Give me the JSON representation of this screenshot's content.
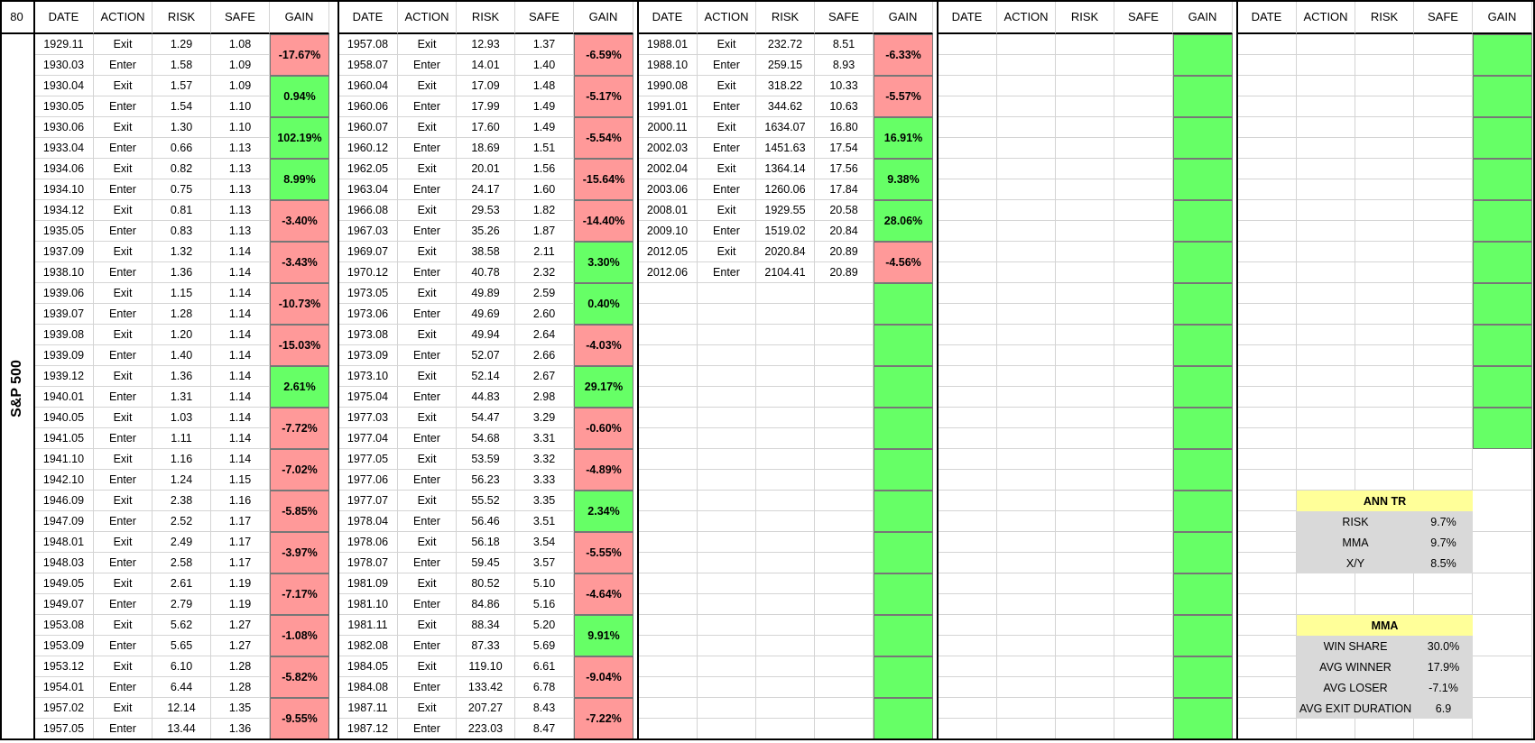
{
  "corner": "80",
  "side_label": "S&P 500",
  "headers": [
    "DATE",
    "ACTION",
    "RISK",
    "SAFE",
    "GAIN"
  ],
  "blocks": [
    {
      "pairs": [
        {
          "rows": [
            [
              "1929.11",
              "Exit",
              "1.29",
              "1.08"
            ],
            [
              "1930.03",
              "Enter",
              "1.58",
              "1.09"
            ]
          ],
          "gain": "-17.67%"
        },
        {
          "rows": [
            [
              "1930.04",
              "Exit",
              "1.57",
              "1.09"
            ],
            [
              "1930.05",
              "Enter",
              "1.54",
              "1.10"
            ]
          ],
          "gain": "0.94%"
        },
        {
          "rows": [
            [
              "1930.06",
              "Exit",
              "1.30",
              "1.10"
            ],
            [
              "1933.04",
              "Enter",
              "0.66",
              "1.13"
            ]
          ],
          "gain": "102.19%"
        },
        {
          "rows": [
            [
              "1934.06",
              "Exit",
              "0.82",
              "1.13"
            ],
            [
              "1934.10",
              "Enter",
              "0.75",
              "1.13"
            ]
          ],
          "gain": "8.99%"
        },
        {
          "rows": [
            [
              "1934.12",
              "Exit",
              "0.81",
              "1.13"
            ],
            [
              "1935.05",
              "Enter",
              "0.83",
              "1.13"
            ]
          ],
          "gain": "-3.40%"
        },
        {
          "rows": [
            [
              "1937.09",
              "Exit",
              "1.32",
              "1.14"
            ],
            [
              "1938.10",
              "Enter",
              "1.36",
              "1.14"
            ]
          ],
          "gain": "-3.43%"
        },
        {
          "rows": [
            [
              "1939.06",
              "Exit",
              "1.15",
              "1.14"
            ],
            [
              "1939.07",
              "Enter",
              "1.28",
              "1.14"
            ]
          ],
          "gain": "-10.73%"
        },
        {
          "rows": [
            [
              "1939.08",
              "Exit",
              "1.20",
              "1.14"
            ],
            [
              "1939.09",
              "Enter",
              "1.40",
              "1.14"
            ]
          ],
          "gain": "-15.03%"
        },
        {
          "rows": [
            [
              "1939.12",
              "Exit",
              "1.36",
              "1.14"
            ],
            [
              "1940.01",
              "Enter",
              "1.31",
              "1.14"
            ]
          ],
          "gain": "2.61%"
        },
        {
          "rows": [
            [
              "1940.05",
              "Exit",
              "1.03",
              "1.14"
            ],
            [
              "1941.05",
              "Enter",
              "1.11",
              "1.14"
            ]
          ],
          "gain": "-7.72%"
        },
        {
          "rows": [
            [
              "1941.10",
              "Exit",
              "1.16",
              "1.14"
            ],
            [
              "1942.10",
              "Enter",
              "1.24",
              "1.15"
            ]
          ],
          "gain": "-7.02%"
        },
        {
          "rows": [
            [
              "1946.09",
              "Exit",
              "2.38",
              "1.16"
            ],
            [
              "1947.09",
              "Enter",
              "2.52",
              "1.17"
            ]
          ],
          "gain": "-5.85%"
        },
        {
          "rows": [
            [
              "1948.01",
              "Exit",
              "2.49",
              "1.17"
            ],
            [
              "1948.03",
              "Enter",
              "2.58",
              "1.17"
            ]
          ],
          "gain": "-3.97%"
        },
        {
          "rows": [
            [
              "1949.05",
              "Exit",
              "2.61",
              "1.19"
            ],
            [
              "1949.07",
              "Enter",
              "2.79",
              "1.19"
            ]
          ],
          "gain": "-7.17%"
        },
        {
          "rows": [
            [
              "1953.08",
              "Exit",
              "5.62",
              "1.27"
            ],
            [
              "1953.09",
              "Enter",
              "5.65",
              "1.27"
            ]
          ],
          "gain": "-1.08%"
        },
        {
          "rows": [
            [
              "1953.12",
              "Exit",
              "6.10",
              "1.28"
            ],
            [
              "1954.01",
              "Enter",
              "6.44",
              "1.28"
            ]
          ],
          "gain": "-5.82%"
        },
        {
          "rows": [
            [
              "1957.02",
              "Exit",
              "12.14",
              "1.35"
            ],
            [
              "1957.05",
              "Enter",
              "13.44",
              "1.36"
            ]
          ],
          "gain": "-9.55%"
        }
      ]
    },
    {
      "pairs": [
        {
          "rows": [
            [
              "1957.08",
              "Exit",
              "12.93",
              "1.37"
            ],
            [
              "1958.07",
              "Enter",
              "14.01",
              "1.40"
            ]
          ],
          "gain": "-6.59%"
        },
        {
          "rows": [
            [
              "1960.04",
              "Exit",
              "17.09",
              "1.48"
            ],
            [
              "1960.06",
              "Enter",
              "17.99",
              "1.49"
            ]
          ],
          "gain": "-5.17%"
        },
        {
          "rows": [
            [
              "1960.07",
              "Exit",
              "17.60",
              "1.49"
            ],
            [
              "1960.12",
              "Enter",
              "18.69",
              "1.51"
            ]
          ],
          "gain": "-5.54%"
        },
        {
          "rows": [
            [
              "1962.05",
              "Exit",
              "20.01",
              "1.56"
            ],
            [
              "1963.04",
              "Enter",
              "24.17",
              "1.60"
            ]
          ],
          "gain": "-15.64%"
        },
        {
          "rows": [
            [
              "1966.08",
              "Exit",
              "29.53",
              "1.82"
            ],
            [
              "1967.03",
              "Enter",
              "35.26",
              "1.87"
            ]
          ],
          "gain": "-14.40%"
        },
        {
          "rows": [
            [
              "1969.07",
              "Exit",
              "38.58",
              "2.11"
            ],
            [
              "1970.12",
              "Enter",
              "40.78",
              "2.32"
            ]
          ],
          "gain": "3.30%"
        },
        {
          "rows": [
            [
              "1973.05",
              "Exit",
              "49.89",
              "2.59"
            ],
            [
              "1973.06",
              "Enter",
              "49.69",
              "2.60"
            ]
          ],
          "gain": "0.40%"
        },
        {
          "rows": [
            [
              "1973.08",
              "Exit",
              "49.94",
              "2.64"
            ],
            [
              "1973.09",
              "Enter",
              "52.07",
              "2.66"
            ]
          ],
          "gain": "-4.03%"
        },
        {
          "rows": [
            [
              "1973.10",
              "Exit",
              "52.14",
              "2.67"
            ],
            [
              "1975.04",
              "Enter",
              "44.83",
              "2.98"
            ]
          ],
          "gain": "29.17%"
        },
        {
          "rows": [
            [
              "1977.03",
              "Exit",
              "54.47",
              "3.29"
            ],
            [
              "1977.04",
              "Enter",
              "54.68",
              "3.31"
            ]
          ],
          "gain": "-0.60%"
        },
        {
          "rows": [
            [
              "1977.05",
              "Exit",
              "53.59",
              "3.32"
            ],
            [
              "1977.06",
              "Enter",
              "56.23",
              "3.33"
            ]
          ],
          "gain": "-4.89%"
        },
        {
          "rows": [
            [
              "1977.07",
              "Exit",
              "55.52",
              "3.35"
            ],
            [
              "1978.04",
              "Enter",
              "56.46",
              "3.51"
            ]
          ],
          "gain": "2.34%"
        },
        {
          "rows": [
            [
              "1978.06",
              "Exit",
              "56.18",
              "3.54"
            ],
            [
              "1978.07",
              "Enter",
              "59.45",
              "3.57"
            ]
          ],
          "gain": "-5.55%"
        },
        {
          "rows": [
            [
              "1981.09",
              "Exit",
              "80.52",
              "5.10"
            ],
            [
              "1981.10",
              "Enter",
              "84.86",
              "5.16"
            ]
          ],
          "gain": "-4.64%"
        },
        {
          "rows": [
            [
              "1981.11",
              "Exit",
              "88.34",
              "5.20"
            ],
            [
              "1982.08",
              "Enter",
              "87.33",
              "5.69"
            ]
          ],
          "gain": "9.91%"
        },
        {
          "rows": [
            [
              "1984.05",
              "Exit",
              "119.10",
              "6.61"
            ],
            [
              "1984.08",
              "Enter",
              "133.42",
              "6.78"
            ]
          ],
          "gain": "-9.04%"
        },
        {
          "rows": [
            [
              "1987.11",
              "Exit",
              "207.27",
              "8.43"
            ],
            [
              "1987.12",
              "Enter",
              "223.03",
              "8.47"
            ]
          ],
          "gain": "-7.22%"
        }
      ]
    },
    {
      "pairs": [
        {
          "rows": [
            [
              "1988.01",
              "Exit",
              "232.72",
              "8.51"
            ],
            [
              "1988.10",
              "Enter",
              "259.15",
              "8.93"
            ]
          ],
          "gain": "-6.33%"
        },
        {
          "rows": [
            [
              "1990.08",
              "Exit",
              "318.22",
              "10.33"
            ],
            [
              "1991.01",
              "Enter",
              "344.62",
              "10.63"
            ]
          ],
          "gain": "-5.57%"
        },
        {
          "rows": [
            [
              "2000.11",
              "Exit",
              "1634.07",
              "16.80"
            ],
            [
              "2002.03",
              "Enter",
              "1451.63",
              "17.54"
            ]
          ],
          "gain": "16.91%"
        },
        {
          "rows": [
            [
              "2002.04",
              "Exit",
              "1364.14",
              "17.56"
            ],
            [
              "2003.06",
              "Enter",
              "1260.06",
              "17.84"
            ]
          ],
          "gain": "9.38%"
        },
        {
          "rows": [
            [
              "2008.01",
              "Exit",
              "1929.55",
              "20.58"
            ],
            [
              "2009.10",
              "Enter",
              "1519.02",
              "20.84"
            ]
          ],
          "gain": "28.06%"
        },
        {
          "rows": [
            [
              "2012.05",
              "Exit",
              "2020.84",
              "20.89"
            ],
            [
              "2012.06",
              "Enter",
              "2104.41",
              "20.89"
            ]
          ],
          "gain": "-4.56%"
        }
      ]
    }
  ],
  "stats": {
    "ann_tr": {
      "title": "ANN TR",
      "rows": [
        [
          "RISK",
          "9.7%"
        ],
        [
          "MMA",
          "9.7%"
        ],
        [
          "X/Y",
          "8.5%"
        ]
      ]
    },
    "mma": {
      "title": "MMA",
      "rows": [
        [
          "WIN SHARE",
          "30.0%"
        ],
        [
          "AVG WINNER",
          "17.9%"
        ],
        [
          "AVG LOSER",
          "-7.1%"
        ],
        [
          "AVG EXIT DURATION",
          "6.9"
        ]
      ]
    }
  },
  "colors": {
    "positive": "#66ff66",
    "negative": "#ff9999",
    "stat_title": "#ffff99",
    "stat_body": "#d9d9d9"
  }
}
